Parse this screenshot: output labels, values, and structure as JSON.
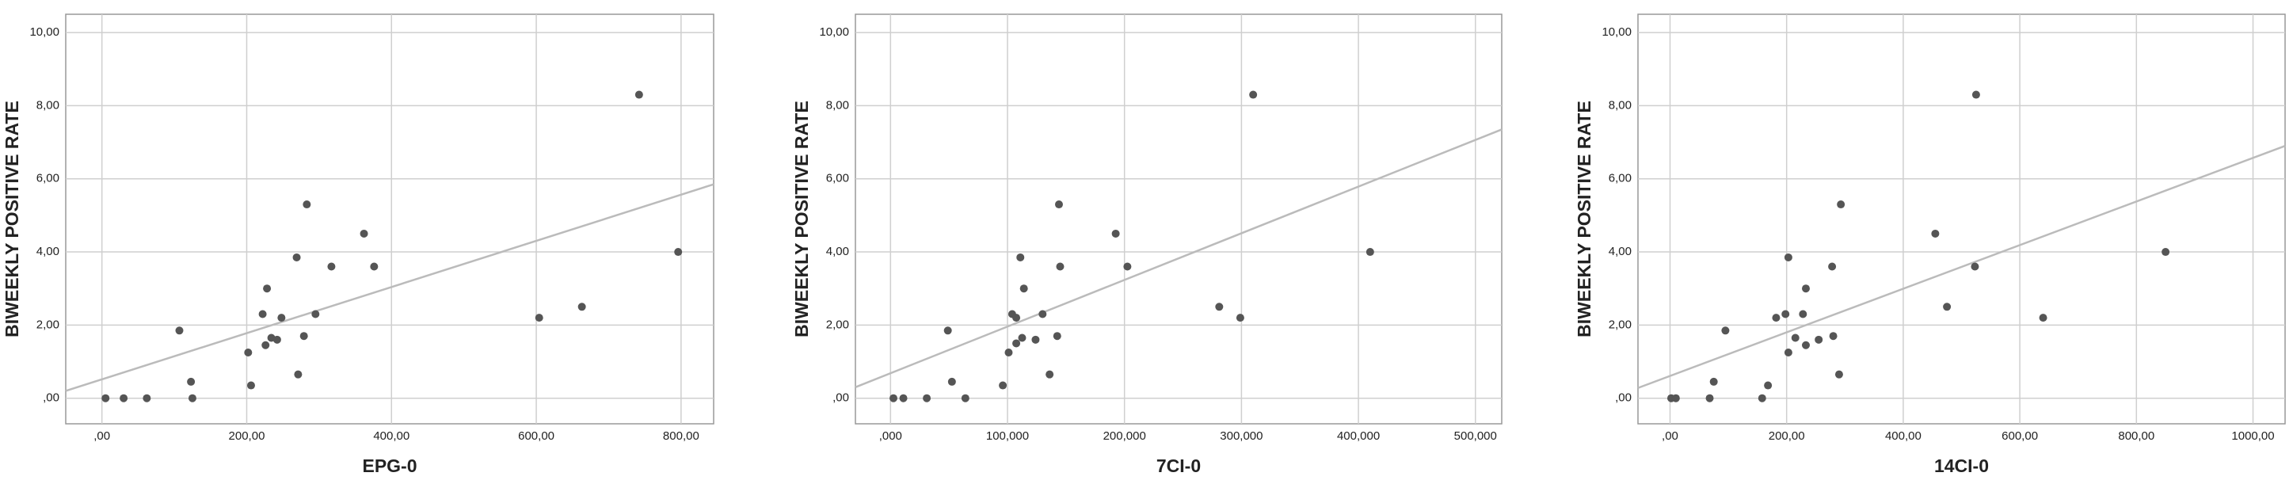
{
  "chart_data": [
    {
      "type": "scatter",
      "x_label": "EPG-0",
      "y_label": "BIWEEKLY POSITIVE RATE",
      "color": "#555555",
      "grid": true,
      "x": [
        5,
        30,
        62,
        107,
        123,
        125,
        202,
        206,
        222,
        228,
        226,
        234,
        242,
        248,
        269,
        271,
        279,
        283,
        295,
        317,
        362,
        376,
        604,
        663,
        742,
        796
      ],
      "values": [
        0,
        0,
        0,
        1.85,
        0.45,
        0,
        1.25,
        0.35,
        2.3,
        3.0,
        1.45,
        1.65,
        1.6,
        2.2,
        3.85,
        0.65,
        1.7,
        5.3,
        2.3,
        3.6,
        4.5,
        3.6,
        2.2,
        2.5,
        8.3,
        4.0
      ],
      "fit_line": {
        "x": [
          -50,
          845
        ],
        "y": [
          0.2,
          5.85
        ],
        "color": "#bbbbbb"
      },
      "xlim": [
        -50,
        845
      ],
      "ylim": [
        -0.7,
        10.5
      ],
      "xticks": [
        {
          "value": 0,
          "label": ",00"
        },
        {
          "value": 200,
          "label": "200,00"
        },
        {
          "value": 400,
          "label": "400,00"
        },
        {
          "value": 600,
          "label": "600,00"
        },
        {
          "value": 800,
          "label": "800,00"
        }
      ],
      "yticks": [
        {
          "value": 0,
          "label": ",00"
        },
        {
          "value": 2,
          "label": "2,00"
        },
        {
          "value": 4,
          "label": "4,00"
        },
        {
          "value": 6,
          "label": "6,00"
        },
        {
          "value": 8,
          "label": "8,00"
        },
        {
          "value": 10,
          "label": "10,00"
        }
      ]
    },
    {
      "type": "scatter",
      "x_label": "7CI-0",
      "y_label": "BIWEEKLY POSITIVE RATE",
      "color": "#555555",
      "grid": true,
      "x": [
        2500,
        11000,
        31000,
        49000,
        52500,
        64000,
        96000,
        101000,
        104000,
        107500,
        107500,
        112500,
        111000,
        114000,
        124000,
        130000,
        136000,
        142500,
        144000,
        145000,
        192500,
        202500,
        281000,
        299000,
        310000,
        410000
      ],
      "values": [
        0,
        0,
        0,
        1.85,
        0.45,
        0,
        0.35,
        1.25,
        2.3,
        2.2,
        1.5,
        1.65,
        3.85,
        3.0,
        1.6,
        2.3,
        0.65,
        1.7,
        5.3,
        3.6,
        4.5,
        3.6,
        2.5,
        2.2,
        8.3,
        4.0
      ],
      "fit_line": {
        "x": [
          -30000,
          522500
        ],
        "y": [
          0.3,
          7.35
        ],
        "color": "#bbbbbb"
      },
      "xlim": [
        -30000,
        522500
      ],
      "ylim": [
        -0.7,
        10.5
      ],
      "xticks": [
        {
          "value": 0,
          "label": ",000"
        },
        {
          "value": 100000,
          "label": "100,000"
        },
        {
          "value": 200000,
          "label": "200,000"
        },
        {
          "value": 300000,
          "label": "300,000"
        },
        {
          "value": 400000,
          "label": "400,000"
        },
        {
          "value": 500000,
          "label": "500,000"
        }
      ],
      "yticks": [
        {
          "value": 0,
          "label": ",00"
        },
        {
          "value": 2,
          "label": "2,00"
        },
        {
          "value": 4,
          "label": "4,00"
        },
        {
          "value": 6,
          "label": "6,00"
        },
        {
          "value": 8,
          "label": "8,00"
        },
        {
          "value": 10,
          "label": "10,00"
        }
      ]
    },
    {
      "type": "scatter",
      "x_label": "14CI-0",
      "y_label": "BIWEEKLY POSITIVE RATE",
      "color": "#555555",
      "grid": true,
      "x": [
        2,
        10,
        68,
        75,
        95,
        158,
        168,
        182,
        198,
        203,
        203,
        215,
        228,
        233,
        233,
        255,
        278,
        280,
        290,
        293,
        455,
        475,
        523,
        525,
        640,
        850
      ],
      "values": [
        0,
        0,
        0,
        0.45,
        1.85,
        0,
        0.35,
        2.2,
        2.3,
        3.85,
        1.25,
        1.65,
        2.3,
        3.0,
        1.45,
        1.6,
        3.6,
        1.7,
        0.65,
        5.3,
        4.5,
        2.5,
        3.6,
        8.3,
        2.2,
        4.0
      ],
      "fit_line": {
        "x": [
          -55,
          1055
        ],
        "y": [
          0.28,
          6.9
        ],
        "color": "#bbbbbb"
      },
      "xlim": [
        -55,
        1055
      ],
      "ylim": [
        -0.7,
        10.5
      ],
      "xticks": [
        {
          "value": 0,
          "label": ",00"
        },
        {
          "value": 200,
          "label": "200,00"
        },
        {
          "value": 400,
          "label": "400,00"
        },
        {
          "value": 600,
          "label": "600,00"
        },
        {
          "value": 800,
          "label": "800,00"
        },
        {
          "value": 1000,
          "label": "1000,00"
        }
      ],
      "yticks": [
        {
          "value": 0,
          "label": ",00"
        },
        {
          "value": 2,
          "label": "2,00"
        },
        {
          "value": 4,
          "label": "4,00"
        },
        {
          "value": 6,
          "label": "6,00"
        },
        {
          "value": 8,
          "label": "8,00"
        },
        {
          "value": 10,
          "label": "10,00"
        }
      ]
    }
  ]
}
